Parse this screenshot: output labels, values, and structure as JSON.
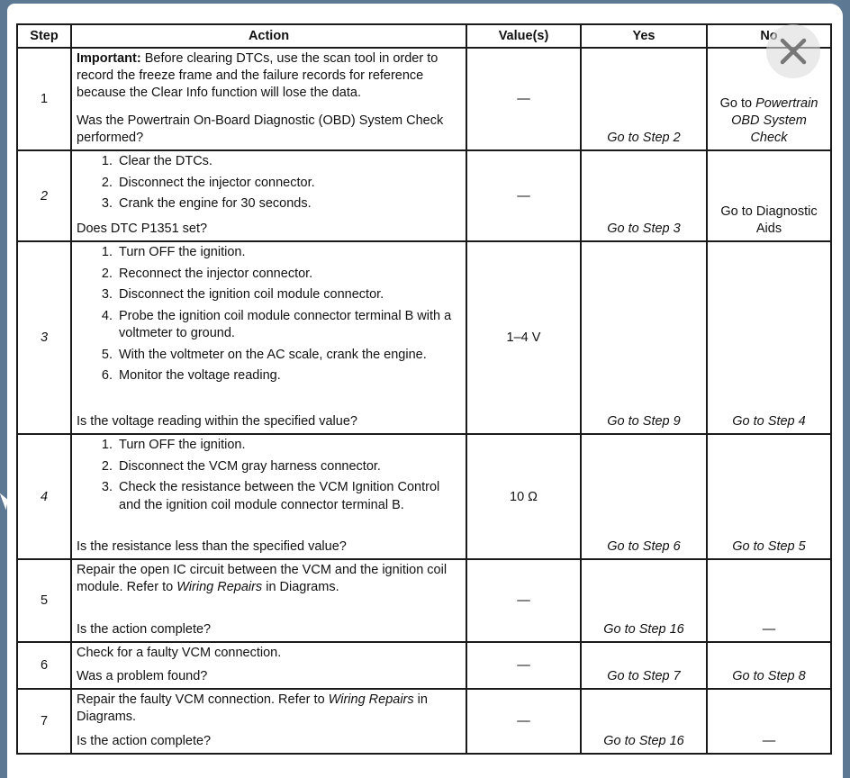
{
  "headers": {
    "step": "Step",
    "action": "Action",
    "values": "Value(s)",
    "yes": "Yes",
    "no": "No"
  },
  "rows": [
    {
      "step": "1",
      "step_italic": false,
      "action": [
        {
          "type": "p",
          "segs": [
            {
              "t": "Important:",
              "b": true
            },
            {
              "t": " Before clearing DTCs, use the scan tool in order to record the freeze frame and the failure records for reference because the Clear Info function will lose the data."
            }
          ]
        },
        {
          "type": "p",
          "segs": [
            {
              "t": "Was the Powertrain On-Board Diagnostic (OBD) System Check performed?"
            }
          ]
        }
      ],
      "value": "—",
      "yes": [
        {
          "t": "Go to Step 2",
          "i": true
        }
      ],
      "no": [
        {
          "t": "Go to "
        },
        {
          "t": "Powertrain OBD System Check",
          "i": true
        }
      ]
    },
    {
      "step": "2",
      "step_italic": true,
      "action": [
        {
          "type": "li",
          "n": "1.",
          "segs": [
            {
              "t": "Clear the DTCs."
            }
          ]
        },
        {
          "type": "li",
          "n": "2.",
          "segs": [
            {
              "t": "Disconnect the injector connector."
            }
          ]
        },
        {
          "type": "li",
          "n": "3.",
          "segs": [
            {
              "t": "Crank the engine for 30 seconds."
            }
          ]
        },
        {
          "type": "p",
          "segs": [
            {
              "t": "Does DTC P1351 set?"
            }
          ]
        }
      ],
      "value": "—",
      "yes": [
        {
          "t": "Go to Step 3",
          "i": true
        }
      ],
      "no": [
        {
          "t": "Go to Diagnostic Aids"
        }
      ]
    },
    {
      "step": "3",
      "step_italic": true,
      "action": [
        {
          "type": "li",
          "n": "1.",
          "segs": [
            {
              "t": "Turn OFF the ignition."
            }
          ]
        },
        {
          "type": "li",
          "n": "2.",
          "segs": [
            {
              "t": "Reconnect the injector connector."
            }
          ]
        },
        {
          "type": "li",
          "n": "3.",
          "segs": [
            {
              "t": "Disconnect the ignition coil module connector."
            }
          ]
        },
        {
          "type": "li",
          "n": "4.",
          "segs": [
            {
              "t": "Probe the ignition coil module connector terminal B with a voltmeter to ground."
            }
          ]
        },
        {
          "type": "li",
          "n": "5.",
          "segs": [
            {
              "t": "With the voltmeter on the AC scale, crank the engine."
            }
          ]
        },
        {
          "type": "li",
          "n": "6.",
          "segs": [
            {
              "t": "Monitor the voltage reading."
            }
          ]
        },
        {
          "type": "p",
          "segs": [
            {
              "t": "Is the voltage reading within the specified value?"
            }
          ]
        }
      ],
      "value": "1–4 V",
      "yes": [
        {
          "t": "Go to Step 9",
          "i": true
        }
      ],
      "no": [
        {
          "t": "Go to Step 4",
          "i": true
        }
      ]
    },
    {
      "step": "4",
      "step_italic": true,
      "action": [
        {
          "type": "li",
          "n": "1.",
          "segs": [
            {
              "t": "Turn OFF the ignition."
            }
          ]
        },
        {
          "type": "li",
          "n": "2.",
          "segs": [
            {
              "t": "Disconnect the VCM gray harness connector."
            }
          ]
        },
        {
          "type": "li",
          "n": "3.",
          "segs": [
            {
              "t": "Check the resistance between the VCM Ignition Control and the ignition coil module connector terminal B."
            }
          ]
        },
        {
          "type": "p",
          "segs": [
            {
              "t": "Is the resistance less than the specified value?"
            }
          ]
        }
      ],
      "value": "10 Ω",
      "yes": [
        {
          "t": "Go to Step 6",
          "i": true
        }
      ],
      "no": [
        {
          "t": "Go to Step 5",
          "i": true
        }
      ]
    },
    {
      "step": "5",
      "step_italic": false,
      "action": [
        {
          "type": "p",
          "segs": [
            {
              "t": "Repair the open IC circuit between the VCM and the ignition coil module. Refer to "
            },
            {
              "t": "Wiring Repairs",
              "i": true
            },
            {
              "t": " in Diagrams."
            }
          ]
        },
        {
          "type": "p",
          "segs": [
            {
              "t": "Is the action complete?"
            }
          ]
        }
      ],
      "value": "—",
      "yes": [
        {
          "t": "Go to Step 16",
          "i": true
        }
      ],
      "no": [
        {
          "t": "—"
        }
      ]
    },
    {
      "step": "6",
      "step_italic": false,
      "action": [
        {
          "type": "p",
          "segs": [
            {
              "t": "Check for a faulty VCM connection."
            }
          ]
        },
        {
          "type": "p",
          "segs": [
            {
              "t": "Was a problem found?"
            }
          ]
        }
      ],
      "value": "—",
      "yes": [
        {
          "t": "Go to Step 7",
          "i": true
        }
      ],
      "no": [
        {
          "t": "Go to Step 8",
          "i": true
        }
      ]
    },
    {
      "step": "7",
      "step_italic": false,
      "action": [
        {
          "type": "p",
          "segs": [
            {
              "t": "Repair the faulty VCM connection. Refer to "
            },
            {
              "t": "Wiring Repairs",
              "i": true
            },
            {
              "t": " in Diagrams."
            }
          ]
        },
        {
          "type": "p",
          "segs": [
            {
              "t": "Is the action complete?"
            }
          ]
        }
      ],
      "value": "—",
      "yes": [
        {
          "t": "Go to Step 16",
          "i": true
        }
      ],
      "no": [
        {
          "t": "—"
        }
      ]
    }
  ],
  "viewer": {
    "close_icon": "close-x-icon",
    "background_color": "#5d7893"
  }
}
